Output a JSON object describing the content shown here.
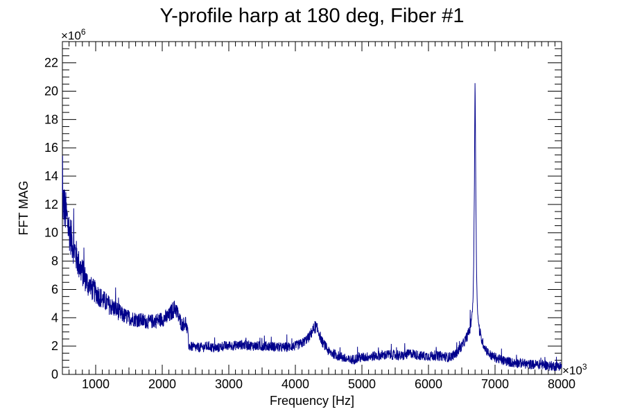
{
  "chart_data": {
    "type": "line",
    "title": "Y-profile harp at 180 deg, Fiber #1",
    "xlabel": "Frequency [Hz]",
    "ylabel": "FFT MAG",
    "x_multiplier_label": "×10",
    "x_multiplier_exponent": "3",
    "y_multiplier_label": "×10",
    "y_multiplier_exponent": "6",
    "xlim": [
      500,
      8000
    ],
    "ylim": [
      0,
      23.5
    ],
    "xticks": [
      1000,
      2000,
      3000,
      4000,
      5000,
      6000,
      7000,
      8000
    ],
    "xtick_labels": [
      "1000",
      "2000",
      "3000",
      "4000",
      "5000",
      "6000",
      "7000",
      "8000"
    ],
    "yticks": [
      0,
      2,
      4,
      6,
      8,
      10,
      12,
      14,
      16,
      18,
      20,
      22
    ],
    "ytick_labels": [
      "0",
      "2",
      "4",
      "6",
      "8",
      "10",
      "12",
      "14",
      "16",
      "18",
      "20",
      "22"
    ],
    "grid": false,
    "line_color": "#00008b",
    "series": [
      {
        "x": [
          500,
          550,
          600,
          650,
          700,
          750,
          800,
          850,
          900,
          950,
          1000,
          1100,
          1200,
          1300,
          1400,
          1500,
          1600,
          1700,
          1800,
          1900,
          2000,
          2100,
          2150,
          2200,
          2250,
          2300,
          2350,
          2380,
          2400,
          2500,
          2600,
          2700,
          2800,
          2900,
          3000,
          3200,
          3400,
          3600,
          3800,
          4000,
          4100,
          4200,
          4250,
          4300,
          4350,
          4400,
          4450,
          4500,
          4600,
          4700,
          4800,
          4900,
          5000,
          5200,
          5400,
          5600,
          5750,
          5800,
          5900,
          6000,
          6100,
          6200,
          6300,
          6400,
          6450,
          6500,
          6550,
          6600,
          6620,
          6640,
          6660,
          6670,
          6680,
          6690,
          6700,
          6710,
          6720,
          6730,
          6740,
          6760,
          6780,
          6800,
          6850,
          6900,
          6950,
          7000,
          7100,
          7200,
          7300,
          7400,
          7500,
          7600,
          7700,
          7800,
          7900,
          8000
        ],
        "y": [
          12.3,
          11.4,
          10.2,
          9.3,
          8.5,
          7.7,
          7.2,
          6.7,
          6.2,
          6.0,
          5.8,
          5.3,
          4.9,
          4.6,
          4.2,
          4.0,
          3.9,
          3.8,
          3.7,
          3.8,
          3.9,
          4.1,
          4.5,
          4.7,
          4.0,
          3.5,
          3.7,
          3.0,
          2.0,
          1.9,
          1.9,
          2.0,
          1.8,
          2.0,
          2.0,
          2.1,
          2.0,
          2.0,
          1.9,
          2.0,
          2.2,
          2.6,
          3.0,
          3.4,
          3.0,
          2.3,
          2.0,
          1.6,
          1.4,
          1.2,
          1.0,
          1.1,
          1.2,
          1.3,
          1.4,
          1.3,
          1.5,
          1.4,
          1.3,
          1.3,
          1.3,
          1.3,
          1.2,
          1.4,
          1.7,
          2.0,
          2.4,
          2.9,
          3.2,
          3.7,
          4.5,
          5.5,
          8.0,
          13.5,
          21.5,
          14.0,
          8.0,
          5.5,
          4.2,
          3.3,
          2.8,
          2.4,
          1.9,
          1.5,
          1.3,
          1.2,
          1.0,
          0.9,
          0.8,
          0.8,
          0.7,
          0.7,
          0.7,
          0.6,
          0.6,
          0.6
        ]
      }
    ]
  }
}
